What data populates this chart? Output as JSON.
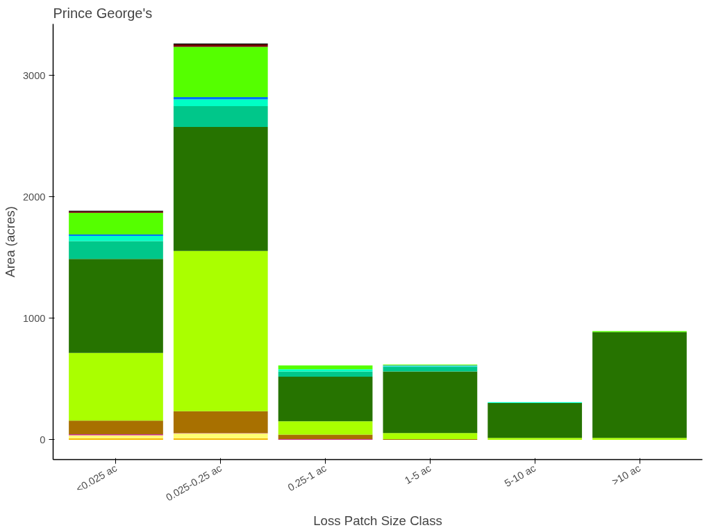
{
  "chart_data": {
    "type": "bar",
    "stacked": true,
    "title": "Prince George's",
    "xlabel": "Loss Patch Size Class",
    "ylabel": "Area (acres)",
    "categories": [
      "<0.025 ac",
      "0.025-0.25 ac",
      "0.25-1 ac",
      "1-5 ac",
      "5-10 ac",
      ">10 ac"
    ],
    "series": [
      {
        "color": "#f5b800",
        "values": [
          12,
          12,
          0,
          0,
          0,
          0
        ]
      },
      {
        "color": "#ffff73",
        "values": [
          25,
          40,
          0,
          0,
          0,
          0
        ]
      },
      {
        "color": "#cc3399",
        "values": [
          8,
          3,
          5,
          0,
          0,
          0
        ]
      },
      {
        "color": "#a87000",
        "values": [
          113,
          180,
          37,
          5,
          0,
          0
        ]
      },
      {
        "color": "#aaff00",
        "values": [
          557,
          1321,
          111,
          50,
          15,
          15
        ]
      },
      {
        "color": "#267300",
        "values": [
          775,
          1021,
          367,
          508,
          287,
          872
        ]
      },
      {
        "color": "#00c78a",
        "values": [
          146,
          171,
          43,
          39,
          0,
          0
        ]
      },
      {
        "color": "#00ffc5",
        "values": [
          43,
          55,
          18,
          6,
          8,
          0
        ]
      },
      {
        "color": "#0070ff",
        "values": [
          12,
          19,
          0,
          4,
          0,
          0
        ]
      },
      {
        "color": "#55ff00",
        "values": [
          178,
          415,
          31,
          8,
          0,
          8
        ]
      },
      {
        "color": "#730000",
        "values": [
          12,
          19,
          0,
          0,
          0,
          0
        ]
      },
      {
        "color": "#000000",
        "values": [
          5,
          8,
          0,
          0,
          0,
          0
        ]
      }
    ],
    "ylim": [
      -163,
      3425
    ],
    "yticks": [
      0,
      1000,
      2000,
      3000
    ],
    "grid": false
  }
}
